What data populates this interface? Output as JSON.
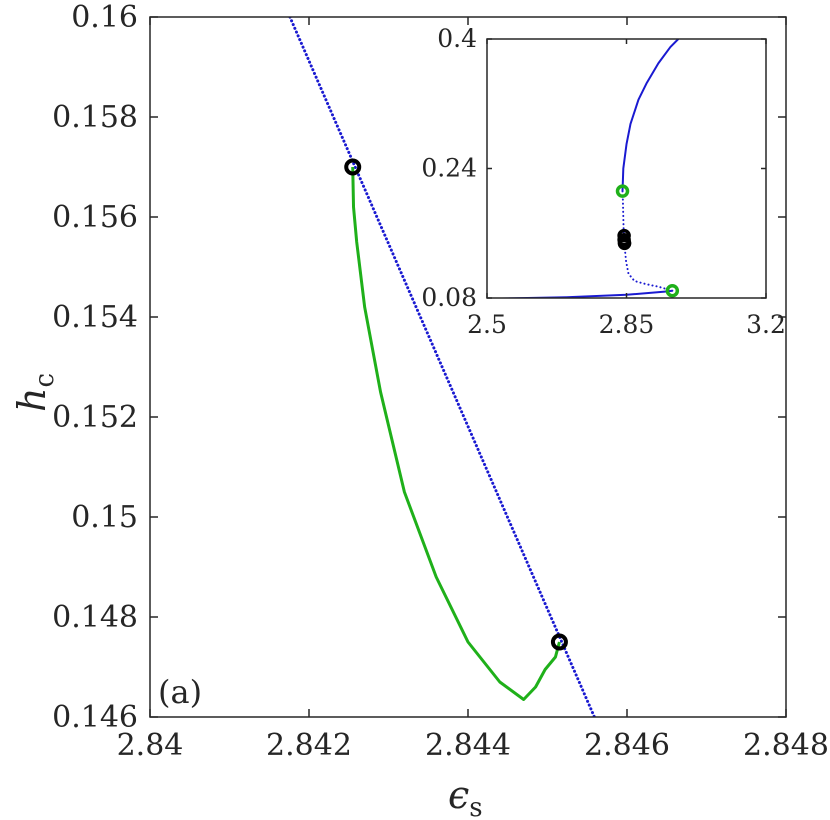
{
  "chart_data": [
    {
      "type": "line",
      "panel_label": "(a)",
      "xlabel": "ϵ",
      "xlabel_sub": "s",
      "ylabel": "h",
      "ylabel_sub": "c",
      "xlim": [
        2.84,
        2.848
      ],
      "ylim": [
        0.146,
        0.16
      ],
      "xticks": [
        2.84,
        2.842,
        2.844,
        2.846,
        2.848
      ],
      "xtick_labels": [
        "2.84",
        "2.842",
        "2.844",
        "2.846",
        "2.848"
      ],
      "yticks": [
        0.146,
        0.148,
        0.15,
        0.152,
        0.154,
        0.156,
        0.158,
        0.16
      ],
      "ytick_labels": [
        "0.146",
        "0.148",
        "0.15",
        "0.152",
        "0.154",
        "0.156",
        "0.158",
        "0.16"
      ],
      "grid": false,
      "series": [
        {
          "style": "dotted",
          "color": "#1a1ad1",
          "x": [
            2.84176,
            2.84559
          ],
          "y": [
            0.16,
            0.146
          ]
        },
        {
          "style": "solid",
          "color": "#1fb01a",
          "x": [
            2.84255,
            2.84256,
            2.8426,
            2.8427,
            2.8429,
            2.8432,
            2.8436,
            2.844,
            2.8444,
            2.8447,
            2.84485,
            2.84497,
            2.8451,
            2.84513,
            2.84515
          ],
          "y": [
            0.157,
            0.1562,
            0.1555,
            0.1542,
            0.1525,
            0.1505,
            0.1488,
            0.1475,
            0.1467,
            0.14635,
            0.1466,
            0.14695,
            0.1472,
            0.14738,
            0.1475
          ]
        }
      ],
      "markers": [
        {
          "x": 2.84255,
          "y": 0.157,
          "color": "#000000"
        },
        {
          "x": 2.84515,
          "y": 0.1475,
          "color": "#000000"
        }
      ]
    },
    {
      "type": "line",
      "role": "inset",
      "xlim": [
        2.5,
        3.2
      ],
      "ylim": [
        0.08,
        0.4
      ],
      "xticks": [
        2.5,
        2.85,
        3.2
      ],
      "xtick_labels": [
        "2.5",
        "2.85",
        "3.2"
      ],
      "yticks": [
        0.08,
        0.24,
        0.4
      ],
      "ytick_labels": [
        "0.08",
        "0.24",
        "0.4"
      ],
      "grid": false,
      "series": [
        {
          "style": "solid",
          "color": "#1a1ad1",
          "x": [
            2.5,
            2.7,
            2.85,
            2.95,
            2.965
          ],
          "y": [
            0.079,
            0.081,
            0.084,
            0.088,
            0.089
          ]
        },
        {
          "style": "dotted",
          "color": "#1a1ad1",
          "x": [
            2.965,
            2.93,
            2.9,
            2.87,
            2.855,
            2.849,
            2.845,
            2.843,
            2.842,
            2.841,
            2.84
          ],
          "y": [
            0.089,
            0.094,
            0.097,
            0.101,
            0.11,
            0.125,
            0.145,
            0.16,
            0.18,
            0.2,
            0.212
          ]
        },
        {
          "style": "solid",
          "color": "#1a1ad1",
          "x": [
            2.84,
            2.842,
            2.85,
            2.86,
            2.88,
            2.9,
            2.93,
            2.96,
            2.98
          ],
          "y": [
            0.212,
            0.24,
            0.27,
            0.295,
            0.325,
            0.345,
            0.37,
            0.39,
            0.4
          ]
        }
      ],
      "markers": [
        {
          "x": 2.84,
          "y": 0.212,
          "color": "#1fb01a"
        },
        {
          "x": 2.965,
          "y": 0.089,
          "color": "#1fb01a"
        },
        {
          "x": 2.844,
          "y": 0.157,
          "color": "#000000"
        },
        {
          "x": 2.844,
          "y": 0.152,
          "color": "#000000"
        },
        {
          "x": 2.845,
          "y": 0.148,
          "color": "#000000"
        },
        {
          "x": 2.845,
          "y": 0.1475,
          "color": "#000000"
        }
      ]
    }
  ]
}
